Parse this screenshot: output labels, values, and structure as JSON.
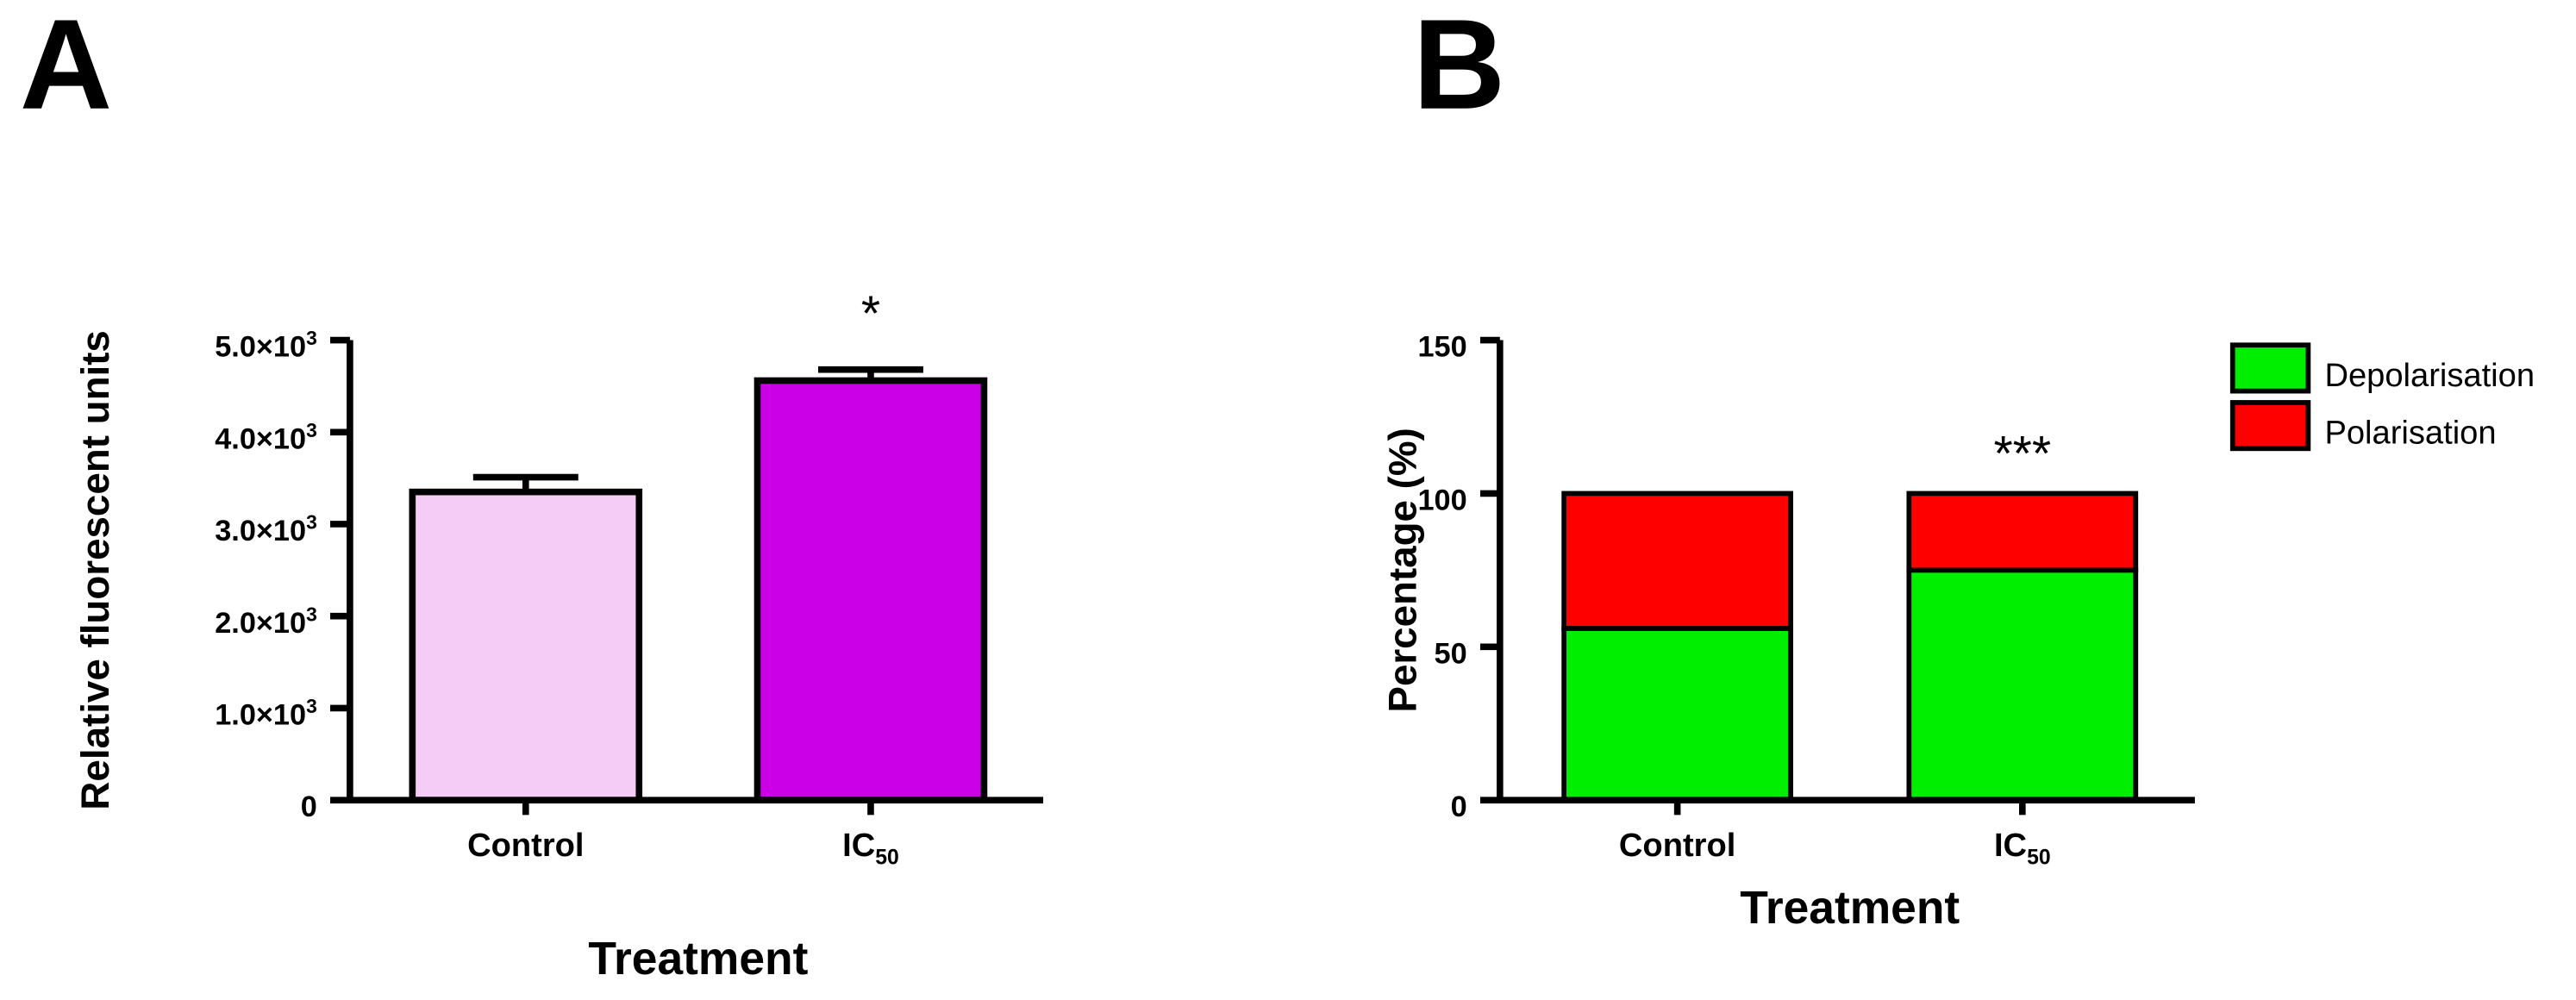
{
  "chart_data": [
    {
      "panel": "A",
      "type": "bar",
      "categories": [
        "Control",
        "IC50"
      ],
      "category_labels": [
        {
          "base": "Control",
          "sub": ""
        },
        {
          "base": "IC",
          "sub": "50"
        }
      ],
      "values": [
        3350,
        4560
      ],
      "errors": [
        160,
        120
      ],
      "colors": [
        "#f5ccf5",
        "#cc00e6"
      ],
      "significance": [
        "",
        "*"
      ],
      "ylabel": "Relative fluorescent units",
      "xlabel": "Treatment",
      "ylim": [
        0,
        5000
      ],
      "yticks": [
        {
          "value": 0,
          "mant": "0",
          "exp": ""
        },
        {
          "value": 1000,
          "mant": "1.0×10",
          "exp": "3"
        },
        {
          "value": 2000,
          "mant": "2.0×10",
          "exp": "3"
        },
        {
          "value": 3000,
          "mant": "3.0×10",
          "exp": "3"
        },
        {
          "value": 4000,
          "mant": "4.0×10",
          "exp": "3"
        },
        {
          "value": 5000,
          "mant": "5.0×10",
          "exp": "3"
        }
      ]
    },
    {
      "panel": "B",
      "type": "bar",
      "stacked": true,
      "categories": [
        "Control",
        "IC50"
      ],
      "category_labels": [
        {
          "base": "Control",
          "sub": ""
        },
        {
          "base": "IC",
          "sub": "50"
        }
      ],
      "series": [
        {
          "name": "Depolarisation",
          "color": "#00ee00",
          "values": [
            56,
            75
          ]
        },
        {
          "name": "Polarisation",
          "color": "#ff0000",
          "values": [
            44,
            25
          ]
        }
      ],
      "significance": [
        "",
        "***"
      ],
      "ylabel": "Percentage (%)",
      "xlabel": "Treatment",
      "ylim": [
        0,
        150
      ],
      "yticks": [
        {
          "value": 0,
          "mant": "0",
          "exp": ""
        },
        {
          "value": 50,
          "mant": "50",
          "exp": ""
        },
        {
          "value": 100,
          "mant": "100",
          "exp": ""
        },
        {
          "value": 150,
          "mant": "150",
          "exp": ""
        }
      ],
      "legend_position": "top-right"
    }
  ]
}
